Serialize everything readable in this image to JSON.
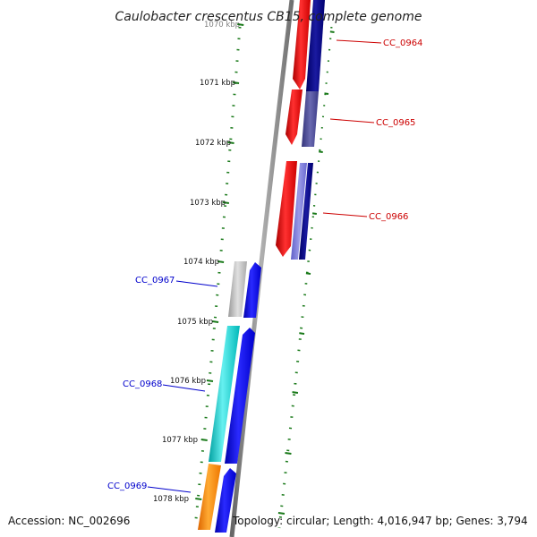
{
  "title": "Caulobacter crescentus CB15, complete genome",
  "accession": "Accession: NC_002696",
  "summary": "Topology: circular; Length: 4,016,947 bp; Genes: 3,794",
  "ticks": [
    "1070 kbp",
    "1071 kbp",
    "1072 kbp",
    "1073 kbp",
    "1074 kbp",
    "1075 kbp",
    "1076 kbp",
    "1077 kbp",
    "1078 kbp"
  ],
  "genes_forward": [
    {
      "id": "CC_0964",
      "strand": "+",
      "color": "#cc0000"
    },
    {
      "id": "CC_0965",
      "strand": "+",
      "color": "#cc0000"
    },
    {
      "id": "CC_0966",
      "strand": "+",
      "color": "#cc0000"
    }
  ],
  "genes_reverse": [
    {
      "id": "CC_0967",
      "strand": "-",
      "color": "#0000cc"
    },
    {
      "id": "CC_0968",
      "strand": "-",
      "color": "#0000cc"
    },
    {
      "id": "CC_0969",
      "strand": "-",
      "color": "#0000cc"
    }
  ],
  "colors": {
    "backbone": "#888888",
    "tick": "#1a7a1a",
    "gene_red": "#ee0000",
    "gene_blue": "#0000ee",
    "gene_navy": "#000080",
    "gene_grey": "#bbbbbb",
    "gene_cyan": "#11cccc",
    "gene_orange": "#ff8800"
  }
}
